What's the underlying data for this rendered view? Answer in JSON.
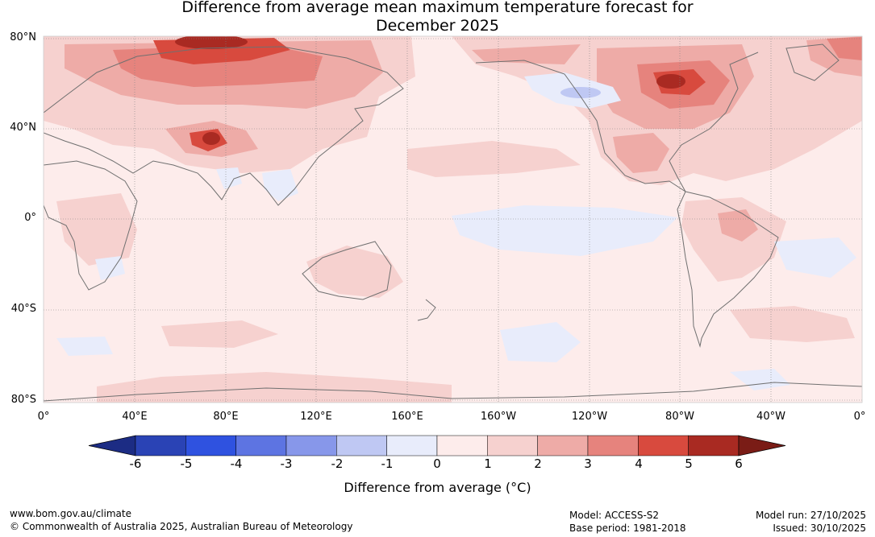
{
  "title": {
    "line1": "Difference from average mean maximum temperature forecast for",
    "line2": "December 2025"
  },
  "map": {
    "projection": "plate-carree",
    "lat_labels": [
      "80°N",
      "40°N",
      "0°",
      "40°S",
      "80°S"
    ],
    "lon_labels": [
      "0°",
      "40°E",
      "80°E",
      "120°E",
      "160°E",
      "160°W",
      "120°W",
      "80°W",
      "40°W",
      "0°"
    ],
    "background_anomaly_range": "0 to 1",
    "notable_regions": [
      {
        "name": "Northern Siberia",
        "anomaly_range": "4 to 6"
      },
      {
        "name": "Central Canada / Hudson Bay",
        "anomaly_range": "5 to 6"
      },
      {
        "name": "Tibet / Western China",
        "anomaly_range": "5 to 6"
      },
      {
        "name": "Alaska / Gulf of Alaska",
        "anomaly_range": "-1 to 0"
      },
      {
        "name": "Central Equatorial Pacific",
        "anomaly_range": "-1 to 0"
      },
      {
        "name": "Southern Ocean",
        "anomaly_range": "1 to 2"
      }
    ]
  },
  "colorbar": {
    "label": "Difference from average (°C)",
    "ticks": [
      "-6",
      "-5",
      "-4",
      "-3",
      "-2",
      "-1",
      "0",
      "1",
      "2",
      "3",
      "4",
      "5",
      "6"
    ],
    "colors": [
      "#1c2c84",
      "#2a43b5",
      "#2f52e0",
      "#5d74e2",
      "#8797ea",
      "#bfc8f3",
      "#e8ecfb",
      "#fdeceb",
      "#f6d1cf",
      "#eeaba7",
      "#e6837d",
      "#d84a3e",
      "#a92a22",
      "#7a1c16"
    ]
  },
  "footer": {
    "url": "www.bom.gov.au/climate",
    "copyright": "© Commonwealth of Australia 2025, Australian Bureau of Meteorology",
    "model": "Model: ACCESS-S2",
    "base_period": "Base period: 1981-2018",
    "model_run": "Model run: 27/10/2025",
    "issued": "Issued: 30/10/2025"
  }
}
